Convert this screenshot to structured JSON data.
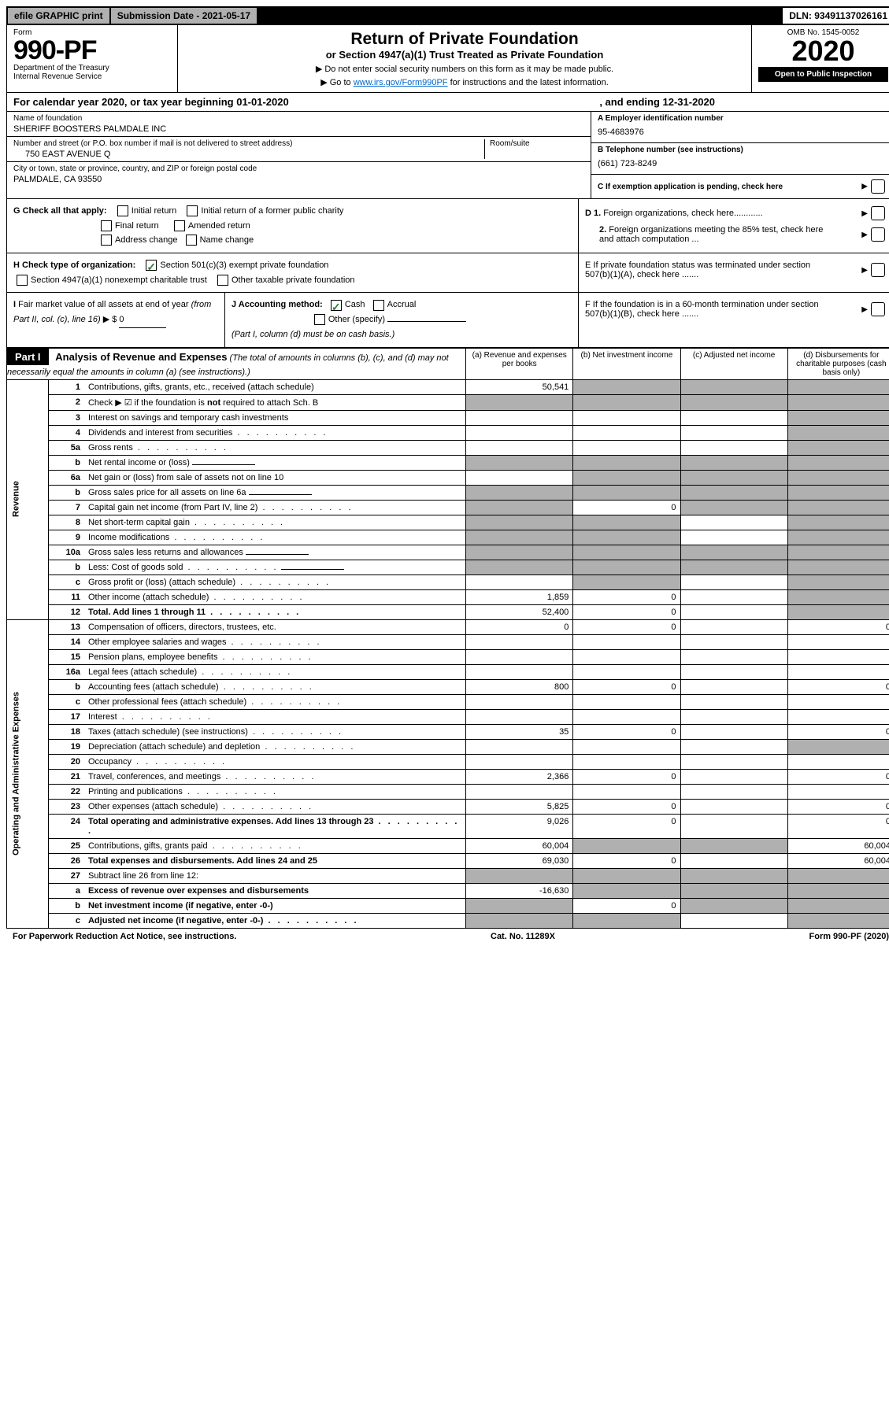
{
  "top": {
    "efile": "efile GRAPHIC print",
    "submission": "Submission Date - 2021-05-17",
    "dln": "DLN: 93491137026161"
  },
  "header": {
    "form_word": "Form",
    "form_num": "990-PF",
    "dept": "Department of the Treasury",
    "irs": "Internal Revenue Service",
    "title": "Return of Private Foundation",
    "subtitle": "or Section 4947(a)(1) Trust Treated as Private Foundation",
    "instr1": "▶ Do not enter social security numbers on this form as it may be made public.",
    "instr2_pre": "▶ Go to ",
    "instr2_link": "www.irs.gov/Form990PF",
    "instr2_post": " for instructions and the latest information.",
    "omb": "OMB No. 1545-0052",
    "year": "2020",
    "open": "Open to Public Inspection"
  },
  "calyear": {
    "label": "For calendar year 2020, or tax year beginning 01-01-2020",
    "ending": ", and ending 12-31-2020"
  },
  "id": {
    "name_lbl": "Name of foundation",
    "name": "SHERIFF BOOSTERS PALMDALE INC",
    "addr_lbl": "Number and street (or P.O. box number if mail is not delivered to street address)",
    "room_lbl": "Room/suite",
    "addr": "750 EAST AVENUE Q",
    "city_lbl": "City or town, state or province, country, and ZIP or foreign postal code",
    "city": "PALMDALE, CA  93550",
    "a_lbl": "A Employer identification number",
    "a": "95-4683976",
    "b_lbl": "B Telephone number (see instructions)",
    "b": "(661) 723-8249",
    "c_lbl": "C If exemption application is pending, check here"
  },
  "g": {
    "label": "G Check all that apply:",
    "o1": "Initial return",
    "o2": "Initial return of a former public charity",
    "o3": "Final return",
    "o4": "Amended return",
    "o5": "Address change",
    "o6": "Name change"
  },
  "h": {
    "label": "H Check type of organization:",
    "o1": "Section 501(c)(3) exempt private foundation",
    "o2": "Section 4947(a)(1) nonexempt charitable trust",
    "o3": "Other taxable private foundation"
  },
  "i": {
    "label": "I Fair market value of all assets at end of year (from Part II, col. (c), line 16)",
    "arrow": "▶ $",
    "val": "0"
  },
  "j": {
    "label": "J Accounting method:",
    "o1": "Cash",
    "o2": "Accrual",
    "o3": "Other (specify)",
    "note": "(Part I, column (d) must be on cash basis.)"
  },
  "right": {
    "d1": "D 1. Foreign organizations, check here............",
    "d2": "2. Foreign organizations meeting the 85% test, check here and attach computation ...",
    "e": "E  If private foundation status was terminated under section 507(b)(1)(A), check here .......",
    "f": "F  If the foundation is in a 60-month termination under section 507(b)(1)(B), check here ......."
  },
  "part1": {
    "label": "Part I",
    "title": "Analysis of Revenue and Expenses",
    "note": " (The total of amounts in columns (b), (c), and (d) may not necessarily equal the amounts in column (a) (see instructions).)",
    "col_a": "(a)  Revenue and expenses per books",
    "col_b": "(b)  Net investment income",
    "col_c": "(c)  Adjusted net income",
    "col_d": "(d)  Disbursements for charitable purposes (cash basis only)"
  },
  "sections": {
    "rev": "Revenue",
    "exp": "Operating and Administrative Expenses"
  },
  "rows": [
    {
      "n": "1",
      "d": "Contributions, gifts, grants, etc., received (attach schedule)",
      "a": "50,541",
      "b": "",
      "c": "",
      "dd": "",
      "sb": true,
      "sc": true,
      "sd": true
    },
    {
      "n": "2",
      "d": "Check ▶ ☑ if the foundation is not required to attach Sch. B",
      "a": "",
      "b": "",
      "c": "",
      "dd": "",
      "sa": true,
      "sb": true,
      "sc": true,
      "sd": true,
      "bold_not": true
    },
    {
      "n": "3",
      "d": "Interest on savings and temporary cash investments",
      "a": "",
      "b": "",
      "c": "",
      "dd": "",
      "sd": true
    },
    {
      "n": "4",
      "d": "Dividends and interest from securities",
      "a": "",
      "b": "",
      "c": "",
      "dd": "",
      "sd": true,
      "dots": true
    },
    {
      "n": "5a",
      "d": "Gross rents",
      "a": "",
      "b": "",
      "c": "",
      "dd": "",
      "sd": true,
      "dots": true
    },
    {
      "n": "b",
      "d": "Net rental income or (loss)",
      "a": "",
      "b": "",
      "c": "",
      "dd": "",
      "sa": true,
      "sb": true,
      "sc": true,
      "sd": true,
      "inline": true
    },
    {
      "n": "6a",
      "d": "Net gain or (loss) from sale of assets not on line 10",
      "a": "",
      "b": "",
      "c": "",
      "dd": "",
      "sb": true,
      "sc": true,
      "sd": true
    },
    {
      "n": "b",
      "d": "Gross sales price for all assets on line 6a",
      "a": "",
      "b": "",
      "c": "",
      "dd": "",
      "sa": true,
      "sb": true,
      "sc": true,
      "sd": true,
      "inline": true
    },
    {
      "n": "7",
      "d": "Capital gain net income (from Part IV, line 2)",
      "a": "",
      "b": "0",
      "c": "",
      "dd": "",
      "sa": true,
      "sc": true,
      "sd": true,
      "dots": true
    },
    {
      "n": "8",
      "d": "Net short-term capital gain",
      "a": "",
      "b": "",
      "c": "",
      "dd": "",
      "sa": true,
      "sb": true,
      "sd": true,
      "dots": true
    },
    {
      "n": "9",
      "d": "Income modifications",
      "a": "",
      "b": "",
      "c": "",
      "dd": "",
      "sa": true,
      "sb": true,
      "sd": true,
      "dots": true
    },
    {
      "n": "10a",
      "d": "Gross sales less returns and allowances",
      "a": "",
      "b": "",
      "c": "",
      "dd": "",
      "sa": true,
      "sb": true,
      "sc": true,
      "sd": true,
      "inline": true
    },
    {
      "n": "b",
      "d": "Less: Cost of goods sold",
      "a": "",
      "b": "",
      "c": "",
      "dd": "",
      "sa": true,
      "sb": true,
      "sc": true,
      "sd": true,
      "inline": true,
      "dots": true
    },
    {
      "n": "c",
      "d": "Gross profit or (loss) (attach schedule)",
      "a": "",
      "b": "",
      "c": "",
      "dd": "",
      "sb": true,
      "sd": true,
      "dots": true
    },
    {
      "n": "11",
      "d": "Other income (attach schedule)",
      "a": "1,859",
      "b": "0",
      "c": "",
      "dd": "",
      "sd": true,
      "dots": true
    },
    {
      "n": "12",
      "d": "Total. Add lines 1 through 11",
      "a": "52,400",
      "b": "0",
      "c": "",
      "dd": "",
      "sd": true,
      "dots": true,
      "bold": true
    },
    {
      "n": "13",
      "d": "Compensation of officers, directors, trustees, etc.",
      "a": "0",
      "b": "0",
      "c": "",
      "dd": "0"
    },
    {
      "n": "14",
      "d": "Other employee salaries and wages",
      "a": "",
      "b": "",
      "c": "",
      "dd": "",
      "dots": true
    },
    {
      "n": "15",
      "d": "Pension plans, employee benefits",
      "a": "",
      "b": "",
      "c": "",
      "dd": "",
      "dots": true
    },
    {
      "n": "16a",
      "d": "Legal fees (attach schedule)",
      "a": "",
      "b": "",
      "c": "",
      "dd": "",
      "dots": true
    },
    {
      "n": "b",
      "d": "Accounting fees (attach schedule)",
      "a": "800",
      "b": "0",
      "c": "",
      "dd": "0",
      "dots": true
    },
    {
      "n": "c",
      "d": "Other professional fees (attach schedule)",
      "a": "",
      "b": "",
      "c": "",
      "dd": "",
      "dots": true
    },
    {
      "n": "17",
      "d": "Interest",
      "a": "",
      "b": "",
      "c": "",
      "dd": "",
      "dots": true
    },
    {
      "n": "18",
      "d": "Taxes (attach schedule) (see instructions)",
      "a": "35",
      "b": "0",
      "c": "",
      "dd": "0",
      "dots": true
    },
    {
      "n": "19",
      "d": "Depreciation (attach schedule) and depletion",
      "a": "",
      "b": "",
      "c": "",
      "dd": "",
      "sd": true,
      "dots": true
    },
    {
      "n": "20",
      "d": "Occupancy",
      "a": "",
      "b": "",
      "c": "",
      "dd": "",
      "dots": true
    },
    {
      "n": "21",
      "d": "Travel, conferences, and meetings",
      "a": "2,366",
      "b": "0",
      "c": "",
      "dd": "0",
      "dots": true
    },
    {
      "n": "22",
      "d": "Printing and publications",
      "a": "",
      "b": "",
      "c": "",
      "dd": "",
      "dots": true
    },
    {
      "n": "23",
      "d": "Other expenses (attach schedule)",
      "a": "5,825",
      "b": "0",
      "c": "",
      "dd": "0",
      "dots": true
    },
    {
      "n": "24",
      "d": "Total operating and administrative expenses. Add lines 13 through 23",
      "a": "9,026",
      "b": "0",
      "c": "",
      "dd": "0",
      "bold": true,
      "dots": true
    },
    {
      "n": "25",
      "d": "Contributions, gifts, grants paid",
      "a": "60,004",
      "b": "",
      "c": "",
      "dd": "60,004",
      "sb": true,
      "sc": true,
      "dots": true
    },
    {
      "n": "26",
      "d": "Total expenses and disbursements. Add lines 24 and 25",
      "a": "69,030",
      "b": "0",
      "c": "",
      "dd": "60,004",
      "bold": true
    },
    {
      "n": "27",
      "d": "Subtract line 26 from line 12:",
      "a": "",
      "b": "",
      "c": "",
      "dd": "",
      "sa": true,
      "sb": true,
      "sc": true,
      "sd": true
    },
    {
      "n": "a",
      "d": "Excess of revenue over expenses and disbursements",
      "a": "-16,630",
      "b": "",
      "c": "",
      "dd": "",
      "sb": true,
      "sc": true,
      "sd": true,
      "bold": true
    },
    {
      "n": "b",
      "d": "Net investment income (if negative, enter -0-)",
      "a": "",
      "b": "0",
      "c": "",
      "dd": "",
      "sa": true,
      "sc": true,
      "sd": true,
      "bold": true
    },
    {
      "n": "c",
      "d": "Adjusted net income (if negative, enter -0-)",
      "a": "",
      "b": "",
      "c": "",
      "dd": "",
      "sa": true,
      "sb": true,
      "sd": true,
      "bold": true,
      "dots": true
    }
  ],
  "footer": {
    "left": "For Paperwork Reduction Act Notice, see instructions.",
    "cat": "Cat. No. 11289X",
    "right": "Form 990-PF (2020)"
  }
}
